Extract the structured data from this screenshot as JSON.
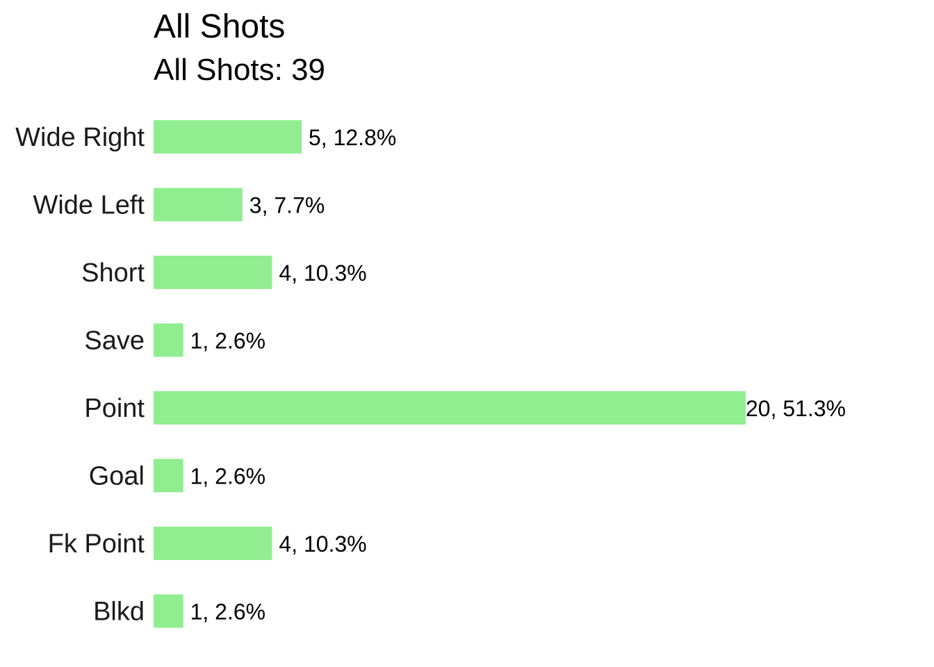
{
  "chart_data": {
    "type": "bar",
    "orientation": "horizontal",
    "title": "All Shots",
    "subtitle": "All Shots: 39",
    "xlabel": "",
    "ylabel": "",
    "grid": false,
    "legend": "none",
    "categories": [
      "Wide Right",
      "Wide Left",
      "Short",
      "Save",
      "Point",
      "Goal",
      "Fk Point",
      "Blkd"
    ],
    "values": [
      5,
      3,
      4,
      1,
      20,
      1,
      4,
      1
    ],
    "data_labels": [
      "5, 12.8%",
      "3, 7.7%",
      "4, 10.3%",
      "1, 2.6%",
      "20, 51.3%",
      "1, 2.6%",
      "4, 10.3%",
      "1, 2.6%"
    ],
    "xlim": [
      0,
      20
    ],
    "bar_color": "#90EE90"
  }
}
